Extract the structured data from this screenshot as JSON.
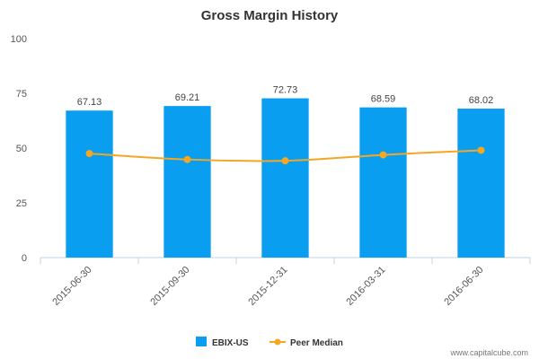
{
  "chart_data": {
    "type": "bar",
    "title": "Gross Margin History",
    "xlabel": "",
    "ylabel": "",
    "ylim": [
      0,
      100
    ],
    "yticks": [
      0,
      25,
      50,
      75,
      100
    ],
    "categories": [
      "2015-06-30",
      "2015-09-30",
      "2015-12-31",
      "2016-03-31",
      "2016-06-30"
    ],
    "series": [
      {
        "name": "EBIX-US",
        "type": "bar",
        "color": "#0a9ef0",
        "values": [
          67.13,
          69.21,
          72.73,
          68.59,
          68.02
        ],
        "data_labels": [
          "67.13",
          "69.21",
          "72.73",
          "68.59",
          "68.02"
        ]
      },
      {
        "name": "Peer Median",
        "type": "line",
        "color": "#f5a623",
        "values": [
          47.5,
          44.8,
          44.2,
          46.9,
          49.0
        ]
      }
    ],
    "grid": false,
    "legend_position": "bottom"
  },
  "watermark": "www.capitalcube.com"
}
